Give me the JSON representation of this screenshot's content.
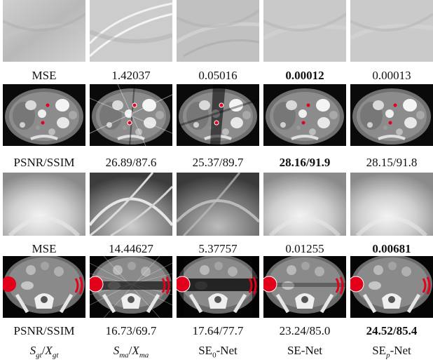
{
  "rows": [
    {
      "metric_label": "MSE",
      "values": [
        "1.42037",
        "0.05016",
        "0.00012",
        "0.00013"
      ],
      "best_index": 2
    },
    {
      "metric_label": "PSNR/SSIM",
      "values": [
        "26.89/87.6",
        "25.37/89.7",
        "28.16/91.9",
        "28.15/91.8"
      ],
      "best_index": 2
    },
    {
      "metric_label": "MSE",
      "values": [
        "14.44627",
        "5.37757",
        "0.01255",
        "0.00681"
      ],
      "best_index": 3
    },
    {
      "metric_label": "PSNR/SSIM",
      "values": [
        "16.73/69.7",
        "17.64/77.7",
        "23.24/85.0",
        "24.52/85.4"
      ],
      "best_index": 3
    }
  ],
  "column_captions": [
    {
      "main": "S",
      "sub": "gt",
      "sep": "/",
      "main2": "X",
      "sub2": "gt"
    },
    {
      "main": "S",
      "sub": "ma",
      "sep": "/",
      "main2": "X",
      "sub2": "ma"
    },
    {
      "main": "SE",
      "sub": "0",
      "rest": "-Net"
    },
    {
      "main": "SE-Net"
    },
    {
      "main": "SE",
      "sub": "p",
      "rest": "-Net"
    }
  ],
  "colors": {
    "metal": "#e3001b",
    "background": "#ffffff",
    "text": "#111111"
  }
}
